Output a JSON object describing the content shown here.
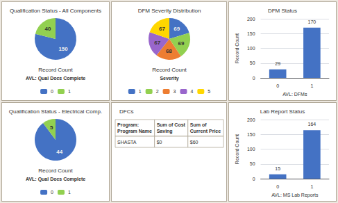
{
  "chart_data": [
    {
      "type": "pie",
      "title": "Qualification Status - All Components",
      "categories": [
        "0",
        "1"
      ],
      "values": [
        150,
        40
      ],
      "colors": [
        "#4472C4",
        "#92D050"
      ],
      "data_labels": true,
      "xlabel": "Record Count",
      "legend_title": "AVL: Qual Docs Complete",
      "legend": "bottom"
    },
    {
      "type": "pie",
      "title": "DFM Severity Distribution",
      "categories": [
        "1",
        "2",
        "3",
        "4",
        "5"
      ],
      "values": [
        69,
        69,
        68,
        67,
        67
      ],
      "colors": [
        "#4472C4",
        "#92D050",
        "#ED7D31",
        "#9966CC",
        "#FFD700"
      ],
      "data_labels": true,
      "xlabel": "Record Count",
      "legend_title": "Severity",
      "legend": "bottom"
    },
    {
      "type": "bar",
      "title": "DFM Status",
      "categories": [
        "0",
        "1"
      ],
      "values": [
        29,
        170
      ],
      "color": "#4472C4",
      "xlabel": "AVL: DFMs",
      "ylabel": "Record Count",
      "ylim": [
        0,
        200
      ],
      "yticks": [
        0,
        50,
        100,
        150,
        200
      ],
      "grid": true,
      "data_labels": true
    },
    {
      "type": "pie",
      "title": "Qualification Status - Electrical Comp.",
      "categories": [
        "0",
        "1"
      ],
      "values": [
        44,
        5
      ],
      "colors": [
        "#4472C4",
        "#92D050"
      ],
      "data_labels": true,
      "xlabel": "Record Count",
      "legend_title": "AVL: Qual Docs Complete",
      "legend": "bottom"
    },
    {
      "type": "table",
      "title": "DFCs",
      "columns": [
        "Program:\nProgram Name",
        "Sum of Cost\nSaving",
        "Sum of\nCurrent Price"
      ],
      "rows": [
        [
          "SHASTA",
          "$0",
          "$60"
        ]
      ]
    },
    {
      "type": "bar",
      "title": "Lab Report Status",
      "categories": [
        "0",
        "1"
      ],
      "values": [
        15,
        164
      ],
      "color": "#4472C4",
      "xlabel": "AVL: MS Lab Reports",
      "ylabel": "Record Count",
      "ylim": [
        0,
        200
      ],
      "yticks": [
        0,
        50,
        100,
        150,
        200
      ],
      "grid": true,
      "data_labels": true
    }
  ]
}
